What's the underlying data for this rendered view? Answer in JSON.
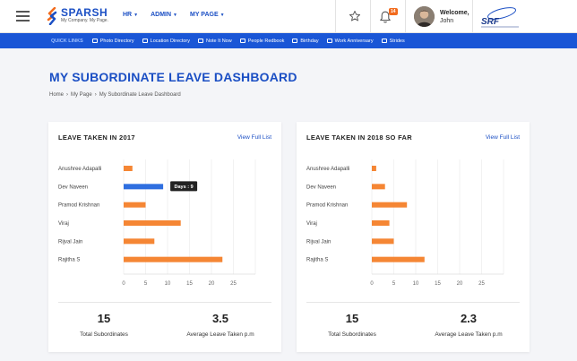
{
  "header": {
    "brand": "SPARSH",
    "tagline": "My Company. My Page.",
    "nav": [
      {
        "label": "HR"
      },
      {
        "label": "ADMIN"
      },
      {
        "label": "MY PAGE"
      }
    ],
    "notification_count": "14",
    "welcome_label": "Welcome,",
    "user_name": "John",
    "icons": [
      "menu-icon",
      "star-icon",
      "bell-icon",
      "srf-logo"
    ]
  },
  "quick_links": {
    "title": "QUICK LINKS",
    "items": [
      {
        "label": "Photo Directory"
      },
      {
        "label": "Location Directory"
      },
      {
        "label": "Note It Now"
      },
      {
        "label": "People Redbook"
      },
      {
        "label": "Birthday"
      },
      {
        "label": "Work Anniversary"
      },
      {
        "label": "Strides"
      }
    ]
  },
  "page": {
    "title": "MY SUBORDINATE LEAVE DASHBOARD",
    "breadcrumb": [
      "Home",
      "My Page",
      "My Subordinate Leave Dashboard"
    ]
  },
  "colors": {
    "brand_blue": "#1b4fc4",
    "quicklinks_bg": "#1a56d6",
    "bar_orange": "#f58634",
    "bar_highlight": "#2f6fe0",
    "badge_orange": "#f26b1d"
  },
  "cards": [
    {
      "title": "LEAVE TAKEN IN 2017",
      "link": "View Full List",
      "stats": [
        {
          "value": "15",
          "label": "Total Subordinates"
        },
        {
          "value": "3.5",
          "label": "Average Leave Taken p.m"
        }
      ],
      "tooltip": "Days : 9"
    },
    {
      "title": "LEAVE TAKEN IN 2018 SO FAR",
      "link": "View Full List",
      "stats": [
        {
          "value": "15",
          "label": "Total Subordinates"
        },
        {
          "value": "2.3",
          "label": "Average Leave Taken p.m"
        }
      ]
    }
  ],
  "chart_data": [
    {
      "type": "bar",
      "orientation": "horizontal",
      "categories": [
        "Anushree Adapalli",
        "Dev Naveen",
        "Pramod Krishnan",
        "Viraj",
        "Rijval Jain",
        "Rajitha S"
      ],
      "values": [
        2,
        9,
        5,
        13,
        7,
        22.5
      ],
      "highlight_index": 1,
      "xticks": [
        0,
        5,
        10,
        15,
        20,
        25
      ],
      "xlim": [
        0,
        30
      ],
      "grid": true
    },
    {
      "type": "bar",
      "orientation": "horizontal",
      "categories": [
        "Anushree Adapalli",
        "Dev Naveen",
        "Pramod Krishnan",
        "Viraj",
        "Rijval Jain",
        "Rajitha S"
      ],
      "values": [
        1,
        3,
        8,
        4,
        5,
        12
      ],
      "xticks": [
        0,
        5,
        10,
        15,
        20,
        25
      ],
      "xlim": [
        0,
        30
      ],
      "grid": true
    }
  ]
}
